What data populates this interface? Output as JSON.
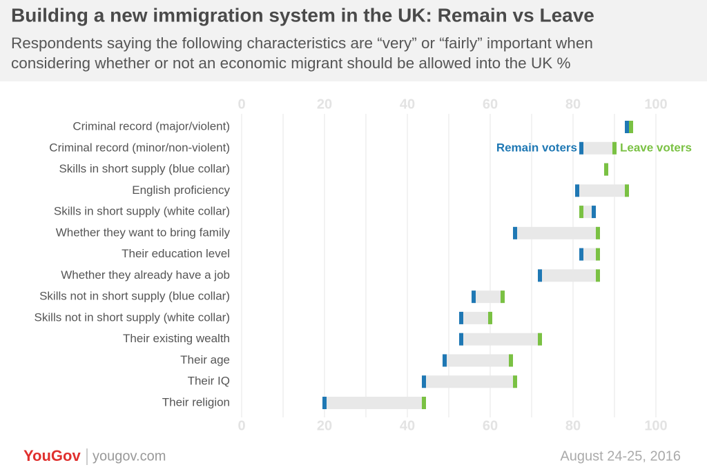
{
  "chart_data": {
    "type": "dumbbell",
    "title": "Building a new immigration system in the UK: Remain vs Leave",
    "subtitle": [
      "Respondents saying the following characteristics are “very” or “fairly” important when",
      "considering whether or not an economic migrant should be allowed into the UK %"
    ],
    "categories": [
      "Criminal record (major/violent)",
      "Criminal record (minor/non-violent)",
      "Skills in short supply (blue collar)",
      "English proficiency",
      "Skills in short supply (white collar)",
      "Whether they want to bring family",
      "Their education level",
      "Whether they already have a job",
      "Skills not in short supply (blue collar)",
      "Skills not in short supply (white collar)",
      "Their existing wealth",
      "Their age",
      "Their IQ",
      "Their religion"
    ],
    "series": [
      {
        "name": "Remain voters",
        "color": "#1f78b4",
        "values": [
          93,
          82,
          88,
          81,
          85,
          66,
          82,
          72,
          56,
          53,
          53,
          49,
          44,
          20
        ]
      },
      {
        "name": "Leave voters",
        "color": "#7ac143",
        "values": [
          94,
          90,
          88,
          93,
          82,
          86,
          86,
          86,
          63,
          60,
          72,
          65,
          66,
          44
        ]
      }
    ],
    "band_color": "#e8e8e8",
    "xlim": [
      0,
      100
    ],
    "xticks": [
      0,
      20,
      40,
      60,
      80,
      100
    ],
    "xminor": [
      10,
      30,
      50,
      70,
      90
    ],
    "grid": true
  },
  "footer": {
    "brand": "YouGov",
    "site": "yougov.com",
    "date": "August 24-25, 2016"
  }
}
